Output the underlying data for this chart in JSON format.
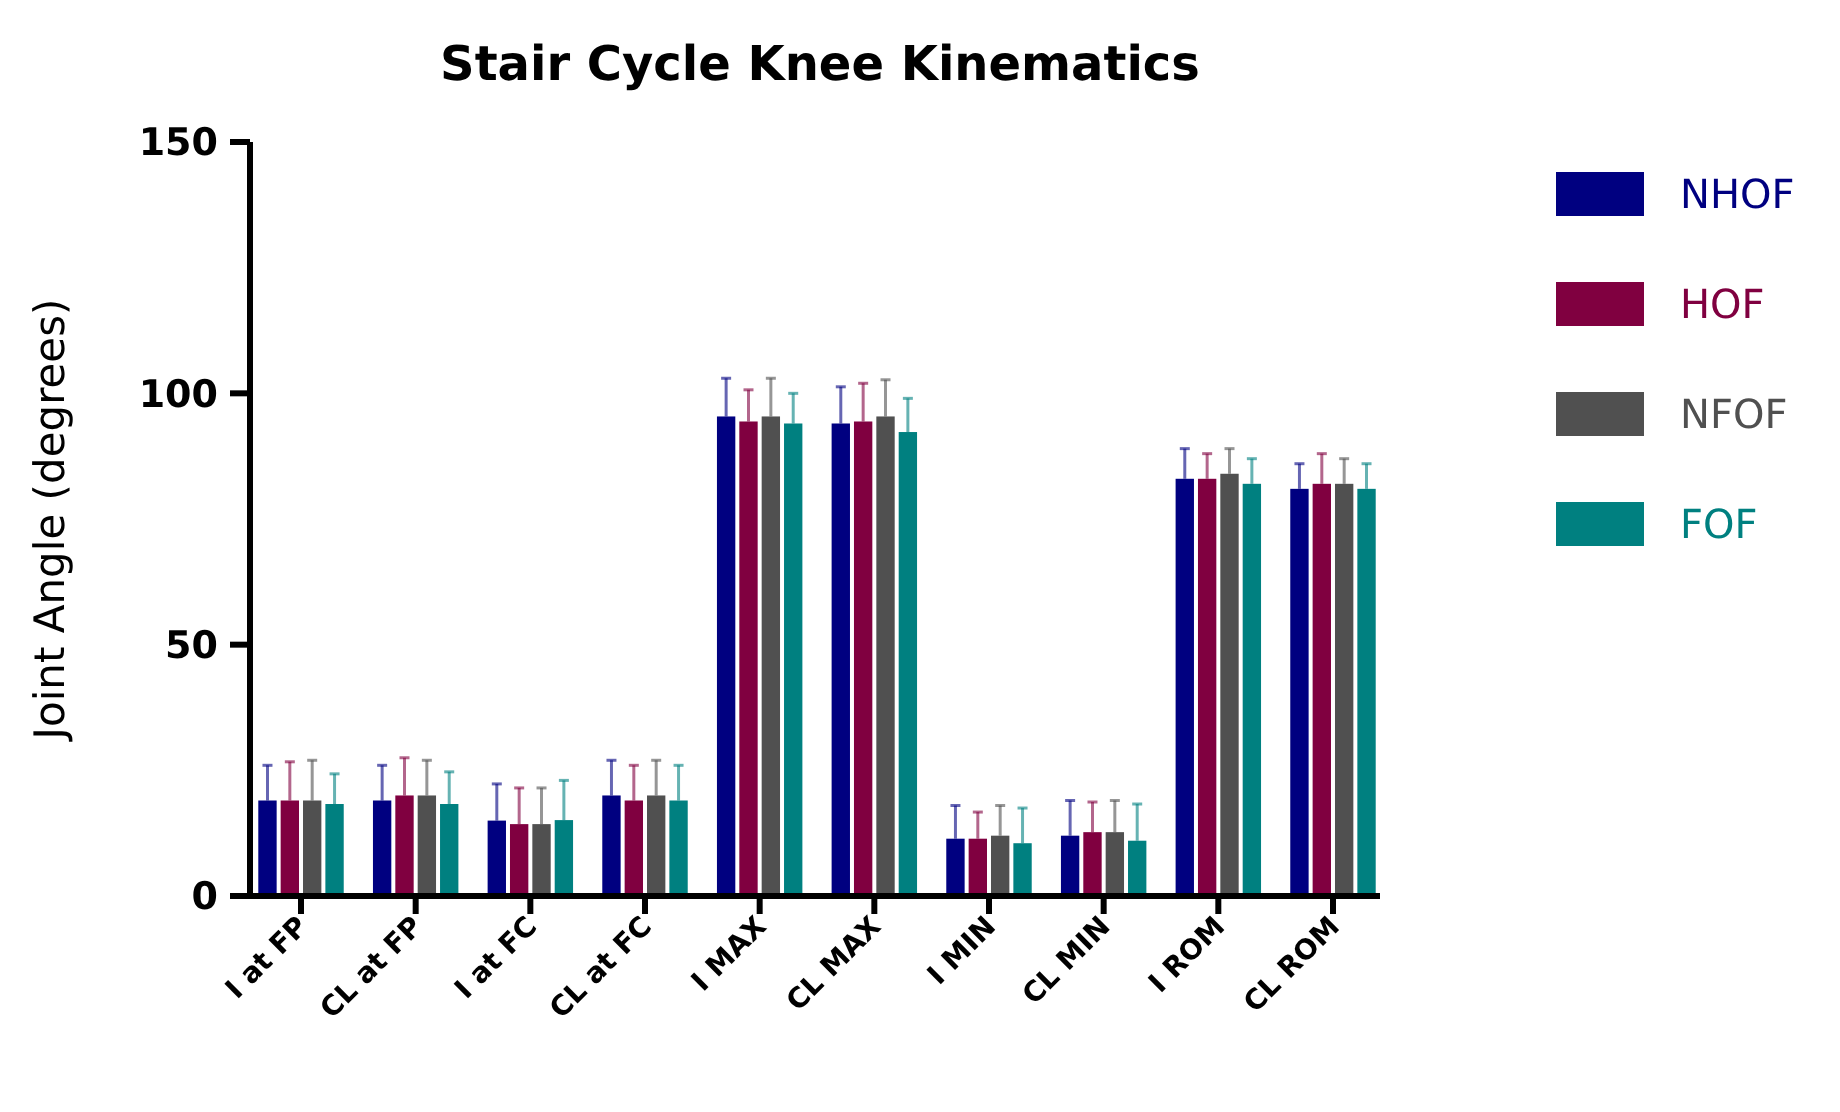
{
  "chart_data": {
    "type": "bar",
    "title": "Stair Cycle Knee Kinematics",
    "ylabel": "Joint Angle (degrees)",
    "categories": [
      "I at FP",
      "CL at FP",
      "I at FC",
      "CL at FC",
      "I MAX",
      "CL MAX",
      "I MIN",
      "CL MIN",
      "I ROM",
      "CL ROM"
    ],
    "series": [
      {
        "name": "NHOF",
        "color": "#000080",
        "values": [
          19,
          19,
          15,
          20,
          95.4,
          94,
          11.4,
          12,
          83,
          81
        ],
        "errors": [
          [
            19,
            26
          ],
          [
            19,
            26
          ],
          [
            15,
            22.3
          ],
          [
            20,
            27
          ],
          [
            95.4,
            103
          ],
          [
            94,
            101.3
          ],
          [
            11.4,
            18
          ],
          [
            12,
            19
          ],
          [
            83,
            89
          ],
          [
            81,
            86
          ]
        ]
      },
      {
        "name": "HOF",
        "color": "#800040",
        "values": [
          19,
          20,
          14.3,
          19,
          94.4,
          94.4,
          11.4,
          12.7,
          83,
          82
        ],
        "errors": [
          [
            19,
            26.7
          ],
          [
            20,
            27.5
          ],
          [
            14.3,
            21.5
          ],
          [
            19,
            26
          ],
          [
            94.4,
            100.7
          ],
          [
            94.4,
            102
          ],
          [
            11.4,
            16.7
          ],
          [
            12.7,
            18.7
          ],
          [
            83,
            88
          ],
          [
            82,
            88
          ]
        ]
      },
      {
        "name": "NFOF",
        "color": "#505050",
        "values": [
          19,
          20,
          14.3,
          20,
          95.4,
          95.4,
          12,
          12.7,
          84,
          82
        ],
        "errors": [
          [
            19,
            27
          ],
          [
            20,
            27
          ],
          [
            14.3,
            21.5
          ],
          [
            20,
            27
          ],
          [
            95.4,
            103
          ],
          [
            95.4,
            102.7
          ],
          [
            12,
            18
          ],
          [
            12.7,
            19
          ],
          [
            84,
            89
          ],
          [
            82,
            87
          ]
        ]
      },
      {
        "name": "FOF",
        "color": "#008080",
        "values": [
          18.3,
          18.3,
          15.1,
          19,
          94,
          92.3,
          10.5,
          11,
          82,
          81
        ],
        "errors": [
          [
            18.3,
            24.3
          ],
          [
            18.3,
            24.7
          ],
          [
            15.1,
            23
          ],
          [
            19,
            26
          ],
          [
            94,
            100
          ],
          [
            92.3,
            99
          ],
          [
            10.5,
            17.5
          ],
          [
            11,
            18.3
          ],
          [
            82,
            87
          ],
          [
            81,
            86
          ]
        ]
      }
    ],
    "ylim": [
      0,
      150
    ],
    "yticks": [
      0,
      50,
      100,
      150
    ],
    "legend": "right"
  }
}
